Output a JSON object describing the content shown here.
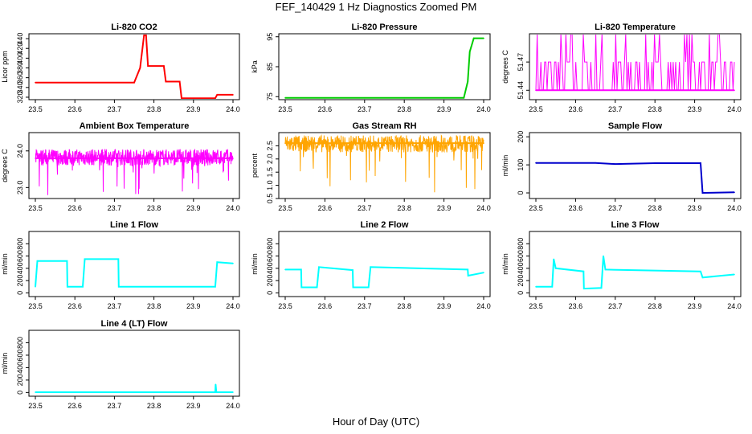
{
  "title": "FEF_140429  1 Hz Diagnostics Zoomed PM",
  "xlabel": "Hour of Day (UTC)",
  "chart_data": [
    {
      "type": "line",
      "title": "Li-820 CO2",
      "ylabel": "Licor ppm",
      "color": "#ff0000",
      "xlim": [
        23.5,
        24.0
      ],
      "ylim": [
        315,
        450
      ],
      "yticks": [
        "320",
        "340",
        "360",
        "380",
        "400",
        "420",
        "440"
      ],
      "ytick_values": [
        320,
        340,
        360,
        380,
        400,
        420,
        440
      ],
      "xticks": [
        "23.5",
        "23.6",
        "23.7",
        "23.8",
        "23.9",
        "24.0"
      ],
      "xtick_values": [
        23.5,
        23.6,
        23.7,
        23.8,
        23.9,
        24.0
      ],
      "x": [
        23.5,
        23.745,
        23.75,
        23.765,
        23.775,
        23.78,
        23.785,
        23.825,
        23.83,
        23.865,
        23.87,
        23.955,
        23.96,
        23.965,
        24.0
      ],
      "y": [
        350,
        350,
        350,
        380,
        447,
        447,
        384,
        384,
        352,
        352,
        318,
        318,
        325,
        325,
        325
      ]
    },
    {
      "type": "line",
      "title": "Li-820 Pressure",
      "ylabel": "kPa",
      "color": "#00cc00",
      "xlim": [
        23.5,
        24.0
      ],
      "ylim": [
        74,
        96
      ],
      "yticks": [
        "75",
        "85",
        "95"
      ],
      "ytick_values": [
        75,
        85,
        95
      ],
      "xticks": [
        "23.5",
        "23.6",
        "23.7",
        "23.8",
        "23.9",
        "24.0"
      ],
      "xtick_values": [
        23.5,
        23.6,
        23.7,
        23.8,
        23.9,
        24.0
      ],
      "x": [
        23.5,
        23.95,
        23.96,
        23.965,
        23.975,
        24.0
      ],
      "y": [
        74.6,
        74.6,
        80,
        90,
        94.5,
        94.5
      ]
    },
    {
      "type": "line",
      "title": "Li-820 Temperature",
      "ylabel": "degrees C",
      "color": "#ff00ff",
      "xlim": [
        23.5,
        24.0
      ],
      "ylim": [
        51.43,
        51.5
      ],
      "yticks": [
        "51.44",
        "51.47"
      ],
      "ytick_values": [
        51.44,
        51.47
      ],
      "xticks": [
        "23.5",
        "23.6",
        "23.7",
        "23.8",
        "23.9",
        "24.0"
      ],
      "xtick_values": [
        23.5,
        23.6,
        23.7,
        23.8,
        23.9,
        24.0
      ],
      "x": [
        23.5,
        24.0
      ],
      "y": [
        51.44,
        51.44
      ],
      "levels": [
        51.44,
        51.47,
        51.5
      ]
    },
    {
      "type": "line",
      "title": "Ambient Box Temperature",
      "ylabel": "degrees C",
      "color": "#ff00ff",
      "xlim": [
        23.5,
        24.0
      ],
      "ylim": [
        22.7,
        24.5
      ],
      "yticks": [
        "23.0",
        "24.0"
      ],
      "ytick_values": [
        23.0,
        24.0
      ],
      "xticks": [
        "23.5",
        "23.6",
        "23.7",
        "23.8",
        "23.9",
        "24.0"
      ],
      "xtick_values": [
        23.5,
        23.6,
        23.7,
        23.8,
        23.9,
        24.0
      ],
      "x": [
        23.5,
        24.0
      ],
      "y": [
        23.8,
        23.8
      ],
      "band": [
        23.6,
        24.05
      ]
    },
    {
      "type": "line",
      "title": "Gas Stream RH",
      "ylabel": "percent",
      "color": "#ffa500",
      "xlim": [
        23.5,
        24.0
      ],
      "ylim": [
        0.5,
        3.0
      ],
      "yticks": [
        "0.5",
        "1.0",
        "1.5",
        "2.0",
        "2.5"
      ],
      "ytick_values": [
        0.5,
        1.0,
        1.5,
        2.0,
        2.5
      ],
      "xticks": [
        "23.5",
        "23.6",
        "23.7",
        "23.8",
        "23.9",
        "24.0"
      ],
      "xtick_values": [
        23.5,
        23.6,
        23.7,
        23.8,
        23.9,
        24.0
      ],
      "x": [
        23.5,
        24.0
      ],
      "y": [
        2.6,
        2.6
      ],
      "band": [
        2.25,
        2.9
      ]
    },
    {
      "type": "line",
      "title": "Sample Flow",
      "ylabel": "ml/min",
      "color": "#0000cc",
      "xlim": [
        23.5,
        24.0
      ],
      "ylim": [
        -20,
        215
      ],
      "yticks": [
        "0",
        "100",
        "200"
      ],
      "ytick_values": [
        0,
        100,
        200
      ],
      "xticks": [
        "23.5",
        "23.6",
        "23.7",
        "23.8",
        "23.9",
        "24.0"
      ],
      "xtick_values": [
        23.5,
        23.6,
        23.7,
        23.8,
        23.9,
        24.0
      ],
      "x": [
        23.5,
        23.65,
        23.7,
        23.8,
        23.915,
        23.92,
        24.0
      ],
      "y": [
        107,
        107,
        103,
        106,
        106,
        0,
        2
      ]
    },
    {
      "type": "line",
      "title": "Line 1 Flow",
      "ylabel": "ml/min",
      "color": "#00ffff",
      "xlim": [
        23.5,
        24.0
      ],
      "ylim": [
        -60,
        1000
      ],
      "yticks": [
        "0",
        "200",
        "400",
        "600",
        "800"
      ],
      "ytick_values": [
        0,
        200,
        400,
        600,
        800
      ],
      "xticks": [
        "23.5",
        "23.6",
        "23.7",
        "23.8",
        "23.9",
        "24.0"
      ],
      "xtick_values": [
        23.5,
        23.6,
        23.7,
        23.8,
        23.9,
        24.0
      ],
      "x": [
        23.5,
        23.505,
        23.58,
        23.581,
        23.62,
        23.625,
        23.71,
        23.711,
        23.955,
        23.96,
        24.0
      ],
      "y": [
        100,
        520,
        520,
        100,
        100,
        550,
        550,
        100,
        100,
        500,
        480
      ]
    },
    {
      "type": "line",
      "title": "Line 2 Flow",
      "ylabel": "ml/min",
      "color": "#00ffff",
      "xlim": [
        23.5,
        24.0
      ],
      "ylim": [
        -60,
        1000
      ],
      "yticks": [
        "0",
        "200",
        "400",
        "600",
        "800"
      ],
      "ytick_values": [
        0,
        200,
        400,
        600,
        800
      ],
      "xticks": [
        "23.5",
        "23.6",
        "23.7",
        "23.8",
        "23.9",
        "24.0"
      ],
      "xtick_values": [
        23.5,
        23.6,
        23.7,
        23.8,
        23.9,
        24.0
      ],
      "x": [
        23.5,
        23.54,
        23.541,
        23.58,
        23.585,
        23.67,
        23.671,
        23.71,
        23.715,
        23.96,
        23.961,
        24.0
      ],
      "y": [
        380,
        380,
        90,
        90,
        420,
        370,
        90,
        90,
        420,
        380,
        280,
        330
      ]
    },
    {
      "type": "line",
      "title": "Line 3 Flow",
      "ylabel": "ml/min",
      "color": "#00ffff",
      "xlim": [
        23.5,
        24.0
      ],
      "ylim": [
        -60,
        1000
      ],
      "yticks": [
        "0",
        "200",
        "400",
        "600",
        "800"
      ],
      "ytick_values": [
        0,
        200,
        400,
        600,
        800
      ],
      "xticks": [
        "23.5",
        "23.6",
        "23.7",
        "23.8",
        "23.9",
        "24.0"
      ],
      "xtick_values": [
        23.5,
        23.6,
        23.7,
        23.8,
        23.9,
        24.0
      ],
      "x": [
        23.5,
        23.541,
        23.545,
        23.55,
        23.62,
        23.621,
        23.665,
        23.67,
        23.675,
        23.915,
        23.92,
        24.0
      ],
      "y": [
        100,
        100,
        550,
        400,
        350,
        70,
        80,
        600,
        380,
        350,
        250,
        300
      ]
    },
    {
      "type": "line",
      "title": "Line 4 (LT) Flow",
      "ylabel": "ml/min",
      "color": "#00ffff",
      "xlim": [
        23.5,
        24.0
      ],
      "ylim": [
        -60,
        1000
      ],
      "yticks": [
        "0",
        "200",
        "400",
        "600",
        "800"
      ],
      "ytick_values": [
        0,
        200,
        400,
        600,
        800
      ],
      "xticks": [
        "23.5",
        "23.6",
        "23.7",
        "23.8",
        "23.9",
        "24.0"
      ],
      "xtick_values": [
        23.5,
        23.6,
        23.7,
        23.8,
        23.9,
        24.0
      ],
      "x": [
        23.5,
        23.955,
        23.956,
        23.958,
        23.96,
        24.0
      ],
      "y": [
        5,
        5,
        130,
        5,
        5,
        5
      ]
    }
  ]
}
